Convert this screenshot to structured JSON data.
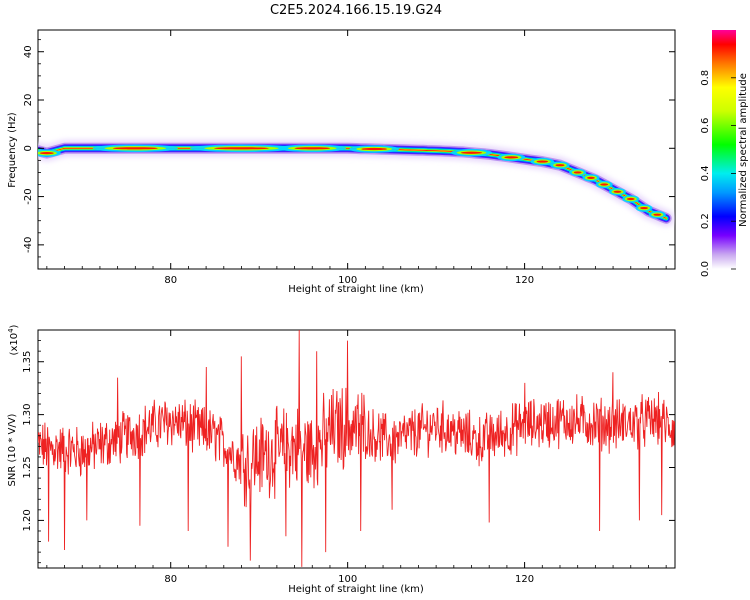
{
  "title": "C2E5.2024.166.15.19.G24",
  "chart_data": [
    {
      "type": "heatmap",
      "id": "spectrogram",
      "xlabel": "Height of straight line (km)",
      "ylabel": "Frequency (Hz)",
      "xlim": [
        65,
        137
      ],
      "ylim": [
        -50,
        49
      ],
      "xticks": [
        80,
        100,
        120
      ],
      "yticks": [
        -40,
        -20,
        0,
        20,
        40
      ],
      "colorbar": {
        "label": "Normalized spectral amplitude",
        "range": [
          0,
          1
        ],
        "ticks": [
          "0.0",
          "0.2",
          "0.4",
          "0.6",
          "0.8"
        ],
        "tick_values": [
          0.0,
          0.2,
          0.4,
          0.6,
          0.8
        ]
      },
      "ridge": {
        "x": [
          65,
          66,
          68,
          70,
          75,
          80,
          85,
          90,
          93,
          95,
          100,
          105,
          110,
          113,
          116,
          118,
          120,
          122,
          124,
          126,
          128,
          130,
          132,
          134,
          136
        ],
        "y": [
          -1,
          -2,
          0,
          0,
          0,
          0,
          0,
          0,
          0,
          0,
          0,
          -0.5,
          -1,
          -1.5,
          -2.5,
          -3.5,
          -4.5,
          -5.5,
          -7,
          -10,
          -13,
          -17,
          -21,
          -26,
          -29
        ]
      }
    },
    {
      "type": "line",
      "id": "snr",
      "xlabel": "Height of straight line (km)",
      "ylabel": "SNR (10 * V/V)",
      "multiplier_label": "(x10",
      "multiplier_exp": "4",
      "multiplier_close": ")",
      "xlim": [
        65,
        137
      ],
      "ylim": [
        11550,
        13800
      ],
      "xticks": [
        80,
        100,
        120
      ],
      "yticks": [
        12000,
        12500,
        13000,
        13500
      ],
      "ytick_labels": [
        "1.20",
        "1.25",
        "1.30",
        "1.35"
      ],
      "color": "#ee2222",
      "baseline": {
        "x": [
          65,
          70,
          75,
          80,
          85,
          88,
          92,
          94,
          96,
          98,
          100,
          105,
          110,
          115,
          120,
          125,
          130,
          135,
          137
        ],
        "y": [
          12700,
          12650,
          12800,
          12950,
          12800,
          12550,
          12650,
          12700,
          12650,
          12850,
          12900,
          12750,
          12900,
          12750,
          12900,
          12950,
          12900,
          12950,
          12850
        ]
      }
    }
  ]
}
